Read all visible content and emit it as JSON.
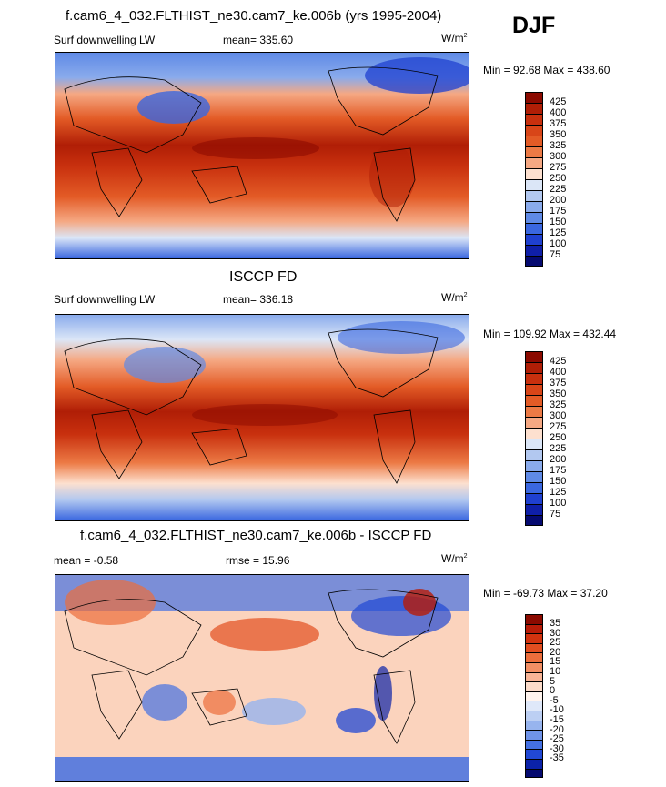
{
  "season": "DJF",
  "units_base": "W/m",
  "units_exp": "2",
  "panels": [
    {
      "title": "f.cam6_4_032.FLTHIST_ne30.cam7_ke.006b (yrs 1995-2004)",
      "variable": "Surf downwelling LW",
      "stat": "mean= 335.60",
      "minmax": "Min =  92.68 Max = 438.60",
      "levels": [
        "425",
        "400",
        "375",
        "350",
        "325",
        "300",
        "275",
        "250",
        "225",
        "200",
        "175",
        "150",
        "125",
        "100",
        "75"
      ]
    },
    {
      "title": "ISCCP FD",
      "variable": "Surf downwelling LW",
      "stat": "mean= 336.18",
      "minmax": "Min = 109.92 Max = 432.44",
      "levels": [
        "425",
        "400",
        "375",
        "350",
        "325",
        "300",
        "275",
        "250",
        "225",
        "200",
        "175",
        "150",
        "125",
        "100",
        "75"
      ]
    },
    {
      "title": "f.cam6_4_032.FLTHIST_ne30.cam7_ke.006b - ISCCP FD",
      "stat_left": "mean =  -0.58",
      "stat": "rmse =  15.96",
      "minmax": "Min = -69.73 Max =  37.20",
      "levels": [
        "35",
        "30",
        "25",
        "20",
        "15",
        "10",
        "5",
        "0",
        "-5",
        "-10",
        "-15",
        "-20",
        "-25",
        "-30",
        "-35"
      ]
    }
  ],
  "colors": {
    "abs_scale": [
      "#8b0a00",
      "#b01e06",
      "#c8300e",
      "#d84518",
      "#e35b26",
      "#ec7a45",
      "#f5a883",
      "#fde0cf",
      "#dbe6f7",
      "#b2c8f0",
      "#8aabec",
      "#5f8ae6",
      "#3a67e0",
      "#1f40d0",
      "#0f1fa8",
      "#050a70"
    ],
    "diff_scale": [
      "#8b0a00",
      "#b81c08",
      "#d2330f",
      "#e24e20",
      "#ec6e3c",
      "#f28f64",
      "#f8b597",
      "#fcdcca",
      "#fff4ee",
      "#dfe8f9",
      "#bccff3",
      "#97b4ee",
      "#6f93e8",
      "#4470e2",
      "#2148d4",
      "#0b22a8",
      "#050a70"
    ]
  }
}
